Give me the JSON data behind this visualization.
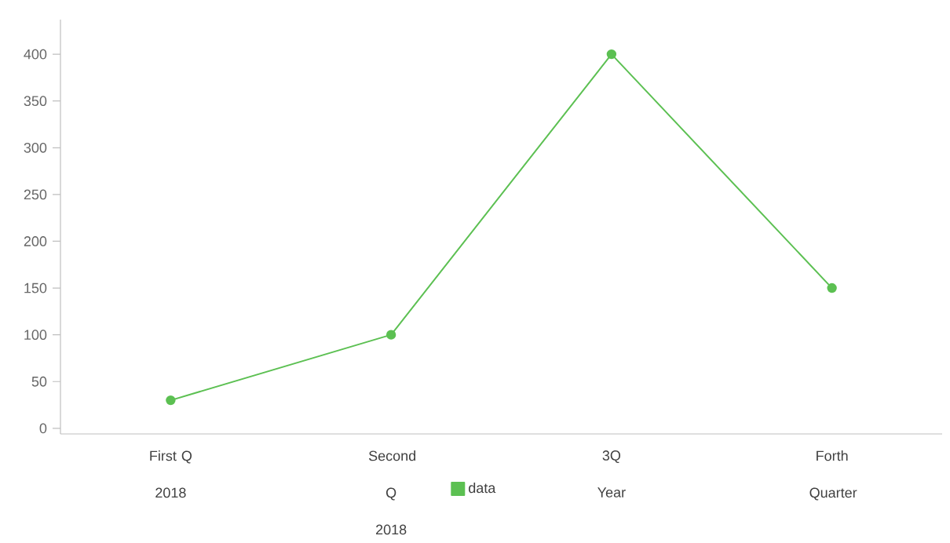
{
  "chart_data": {
    "type": "line",
    "categories": [
      "First Q 2018",
      "Second Q 2018",
      "3Q Year",
      "Forth Quarter"
    ],
    "series": [
      {
        "name": "data",
        "color": "#5cc052",
        "values": [
          30,
          100,
          400,
          150
        ]
      }
    ],
    "ylim": [
      -6,
      437
    ],
    "yticks": [
      0,
      50,
      100,
      150,
      200,
      250,
      300,
      350,
      400
    ],
    "marker": "circle",
    "line_style": "solid",
    "legend": "bottom",
    "grid": false
  }
}
